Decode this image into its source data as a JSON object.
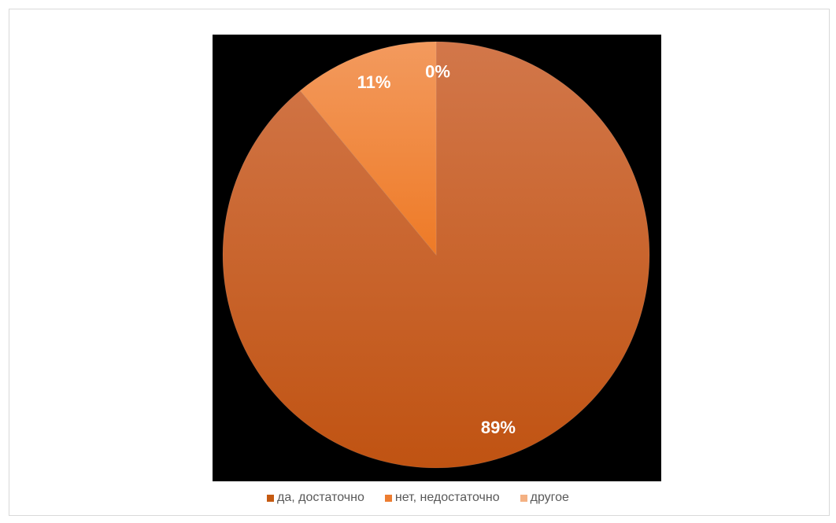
{
  "chart_data": {
    "type": "pie",
    "categories": [
      "да, достаточно",
      "нет, недостаточно",
      "другое"
    ],
    "values": [
      89,
      11,
      0
    ],
    "data_labels": [
      "89%",
      "11%",
      "0%"
    ],
    "colors": [
      "#c55a11",
      "#ed7d31",
      "#f4b183"
    ],
    "legend_position": "bottom",
    "plot_background": "#000000"
  }
}
